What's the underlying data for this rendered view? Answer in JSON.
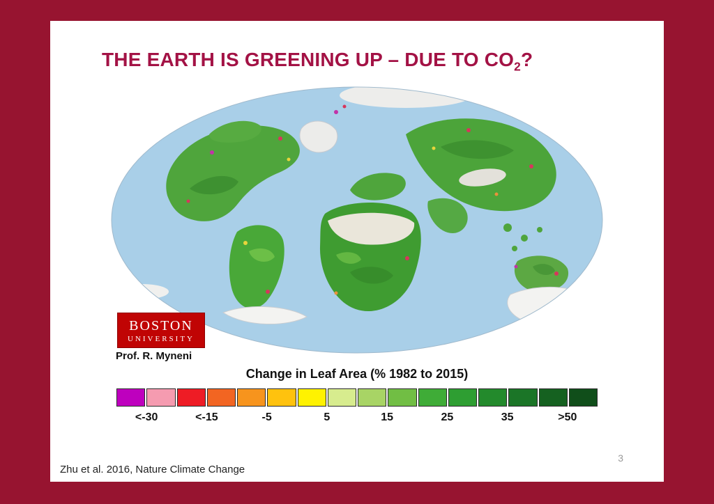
{
  "slide": {
    "title_prefix": "THE EARTH IS GREENING UP – DUE TO CO",
    "title_subscript": "2",
    "title_suffix": "?",
    "citation": "Zhu et al. 2016, Nature Climate Change",
    "page_number": "3"
  },
  "map": {
    "legend_title": "Change in Leaf Area (% 1982 to 2015)",
    "legend_ticks": [
      "<-30",
      "<-15",
      "-5",
      "5",
      "15",
      "25",
      "35",
      ">50"
    ],
    "legend_colors": [
      "#BE00BE",
      "#F59BB0",
      "#EE1C25",
      "#F26522",
      "#F7941D",
      "#FFC20E",
      "#FFF200",
      "#D7EC8E",
      "#A8D465",
      "#71BE44",
      "#3FAC37",
      "#2E9E32",
      "#238A2C",
      "#1B7527",
      "#156120",
      "#104E1A"
    ],
    "logo": {
      "line1": "BOSTON",
      "line2": "UNIVERSITY"
    },
    "credit": "Prof. R. Myneni",
    "colors": {
      "ocean": "#A9CFE8",
      "slide_background": "#FFFFFF",
      "frame_background": "#971430",
      "title_accent": "#A31245"
    }
  }
}
